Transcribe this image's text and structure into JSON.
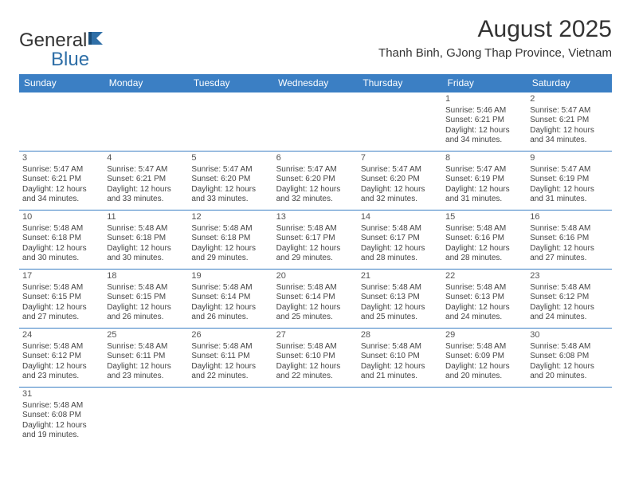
{
  "brand": {
    "name1": "General",
    "name2": "Blue"
  },
  "title": "August 2025",
  "location": "Thanh Binh, GJong Thap Province, Vietnam",
  "colors": {
    "header_bg": "#3b7fc4",
    "header_fg": "#ffffff",
    "text": "#444444",
    "rule": "#3b7fc4"
  },
  "weekdays": [
    "Sunday",
    "Monday",
    "Tuesday",
    "Wednesday",
    "Thursday",
    "Friday",
    "Saturday"
  ],
  "weeks": [
    [
      null,
      null,
      null,
      null,
      null,
      {
        "d": "1",
        "sr": "5:46 AM",
        "ss": "6:21 PM",
        "dl": "12 hours and 34 minutes."
      },
      {
        "d": "2",
        "sr": "5:47 AM",
        "ss": "6:21 PM",
        "dl": "12 hours and 34 minutes."
      }
    ],
    [
      {
        "d": "3",
        "sr": "5:47 AM",
        "ss": "6:21 PM",
        "dl": "12 hours and 34 minutes."
      },
      {
        "d": "4",
        "sr": "5:47 AM",
        "ss": "6:21 PM",
        "dl": "12 hours and 33 minutes."
      },
      {
        "d": "5",
        "sr": "5:47 AM",
        "ss": "6:20 PM",
        "dl": "12 hours and 33 minutes."
      },
      {
        "d": "6",
        "sr": "5:47 AM",
        "ss": "6:20 PM",
        "dl": "12 hours and 32 minutes."
      },
      {
        "d": "7",
        "sr": "5:47 AM",
        "ss": "6:20 PM",
        "dl": "12 hours and 32 minutes."
      },
      {
        "d": "8",
        "sr": "5:47 AM",
        "ss": "6:19 PM",
        "dl": "12 hours and 31 minutes."
      },
      {
        "d": "9",
        "sr": "5:47 AM",
        "ss": "6:19 PM",
        "dl": "12 hours and 31 minutes."
      }
    ],
    [
      {
        "d": "10",
        "sr": "5:48 AM",
        "ss": "6:18 PM",
        "dl": "12 hours and 30 minutes."
      },
      {
        "d": "11",
        "sr": "5:48 AM",
        "ss": "6:18 PM",
        "dl": "12 hours and 30 minutes."
      },
      {
        "d": "12",
        "sr": "5:48 AM",
        "ss": "6:18 PM",
        "dl": "12 hours and 29 minutes."
      },
      {
        "d": "13",
        "sr": "5:48 AM",
        "ss": "6:17 PM",
        "dl": "12 hours and 29 minutes."
      },
      {
        "d": "14",
        "sr": "5:48 AM",
        "ss": "6:17 PM",
        "dl": "12 hours and 28 minutes."
      },
      {
        "d": "15",
        "sr": "5:48 AM",
        "ss": "6:16 PM",
        "dl": "12 hours and 28 minutes."
      },
      {
        "d": "16",
        "sr": "5:48 AM",
        "ss": "6:16 PM",
        "dl": "12 hours and 27 minutes."
      }
    ],
    [
      {
        "d": "17",
        "sr": "5:48 AM",
        "ss": "6:15 PM",
        "dl": "12 hours and 27 minutes."
      },
      {
        "d": "18",
        "sr": "5:48 AM",
        "ss": "6:15 PM",
        "dl": "12 hours and 26 minutes."
      },
      {
        "d": "19",
        "sr": "5:48 AM",
        "ss": "6:14 PM",
        "dl": "12 hours and 26 minutes."
      },
      {
        "d": "20",
        "sr": "5:48 AM",
        "ss": "6:14 PM",
        "dl": "12 hours and 25 minutes."
      },
      {
        "d": "21",
        "sr": "5:48 AM",
        "ss": "6:13 PM",
        "dl": "12 hours and 25 minutes."
      },
      {
        "d": "22",
        "sr": "5:48 AM",
        "ss": "6:13 PM",
        "dl": "12 hours and 24 minutes."
      },
      {
        "d": "23",
        "sr": "5:48 AM",
        "ss": "6:12 PM",
        "dl": "12 hours and 24 minutes."
      }
    ],
    [
      {
        "d": "24",
        "sr": "5:48 AM",
        "ss": "6:12 PM",
        "dl": "12 hours and 23 minutes."
      },
      {
        "d": "25",
        "sr": "5:48 AM",
        "ss": "6:11 PM",
        "dl": "12 hours and 23 minutes."
      },
      {
        "d": "26",
        "sr": "5:48 AM",
        "ss": "6:11 PM",
        "dl": "12 hours and 22 minutes."
      },
      {
        "d": "27",
        "sr": "5:48 AM",
        "ss": "6:10 PM",
        "dl": "12 hours and 22 minutes."
      },
      {
        "d": "28",
        "sr": "5:48 AM",
        "ss": "6:10 PM",
        "dl": "12 hours and 21 minutes."
      },
      {
        "d": "29",
        "sr": "5:48 AM",
        "ss": "6:09 PM",
        "dl": "12 hours and 20 minutes."
      },
      {
        "d": "30",
        "sr": "5:48 AM",
        "ss": "6:08 PM",
        "dl": "12 hours and 20 minutes."
      }
    ],
    [
      {
        "d": "31",
        "sr": "5:48 AM",
        "ss": "6:08 PM",
        "dl": "12 hours and 19 minutes."
      },
      null,
      null,
      null,
      null,
      null,
      null
    ]
  ],
  "labels": {
    "sunrise": "Sunrise: ",
    "sunset": "Sunset: ",
    "daylight": "Daylight: "
  }
}
